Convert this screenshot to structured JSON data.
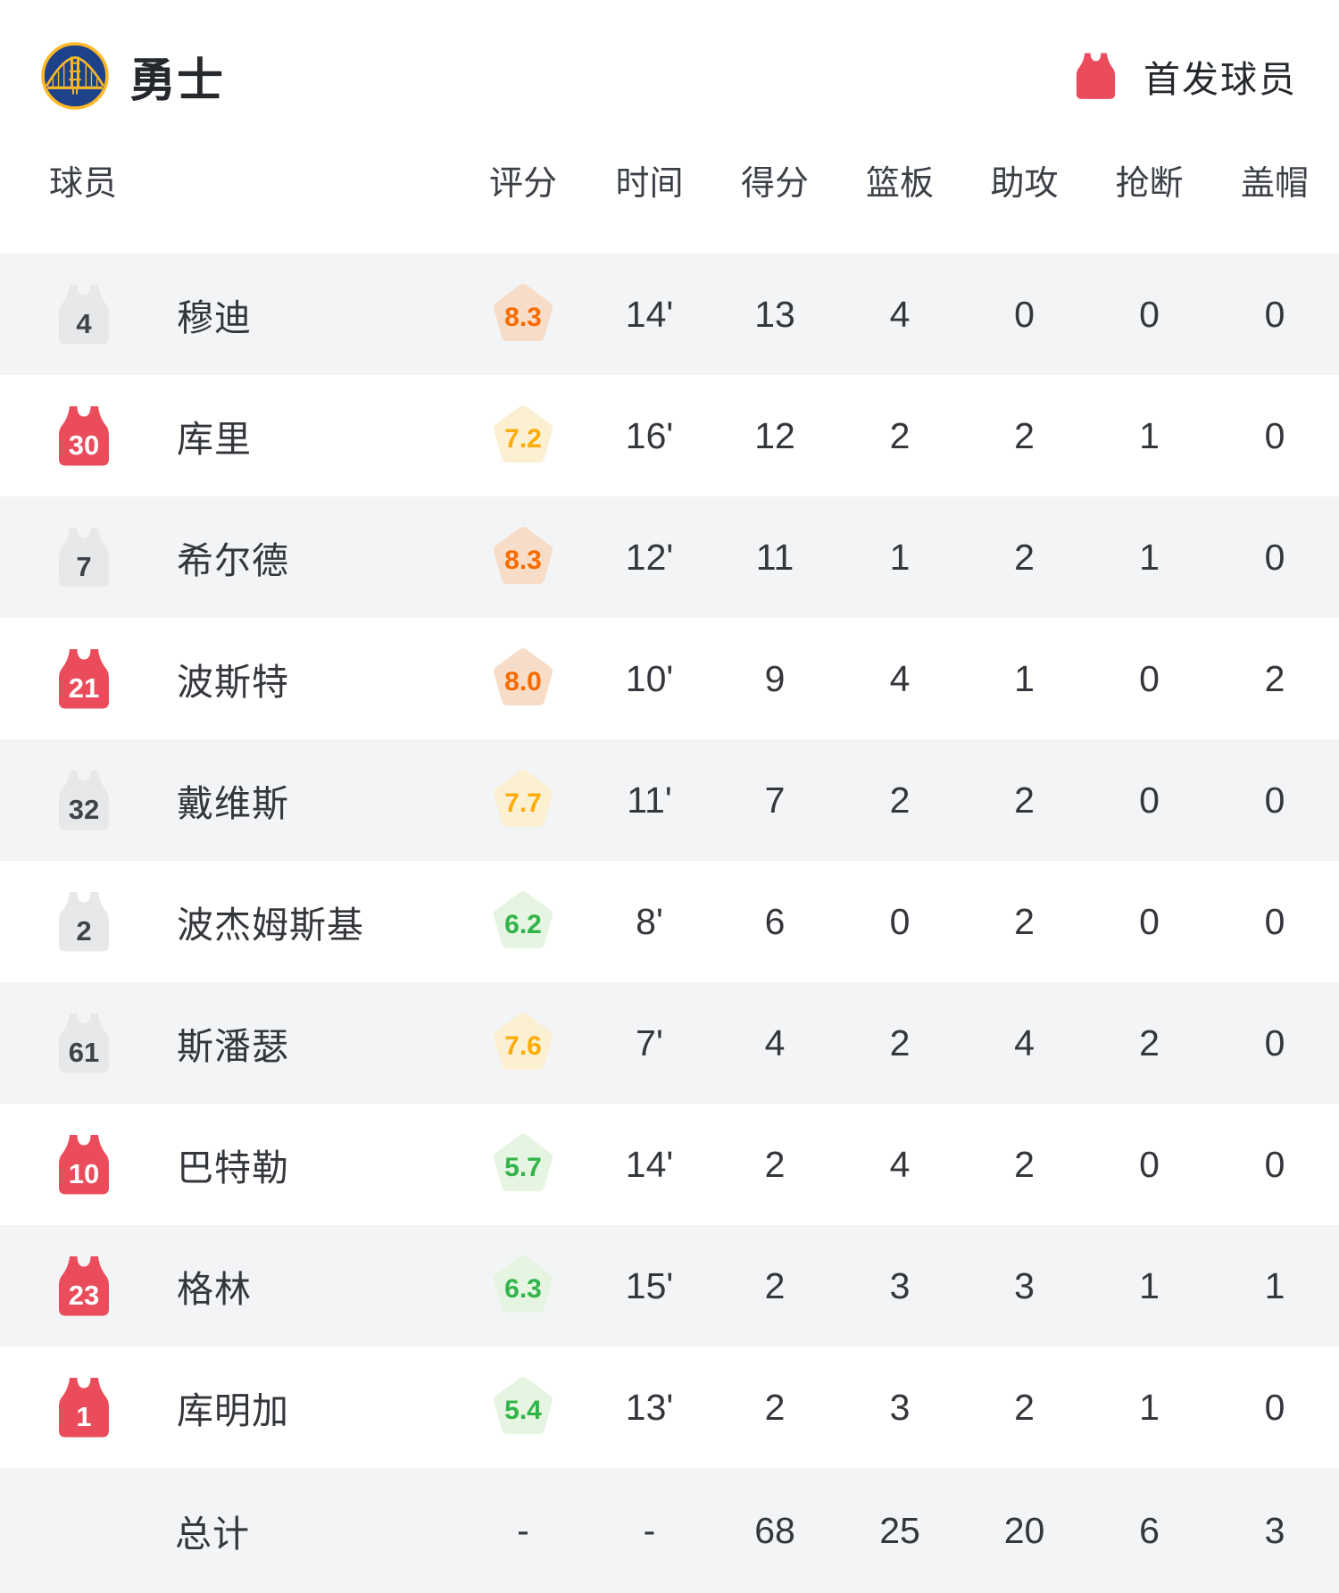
{
  "header": {
    "team_name": "勇士",
    "legend_label": "首发球员"
  },
  "table": {
    "columns": [
      "球员",
      "评分",
      "时间",
      "得分",
      "篮板",
      "助攻",
      "抢断",
      "盖帽"
    ],
    "rows": [
      {
        "number": "4",
        "starter": false,
        "name": "穆迪",
        "rating": "8.3",
        "tier": "orange",
        "time": "14'",
        "points": "13",
        "rebounds": "4",
        "assists": "0",
        "steals": "0",
        "blocks": "0"
      },
      {
        "number": "30",
        "starter": true,
        "name": "库里",
        "rating": "7.2",
        "tier": "amber",
        "time": "16'",
        "points": "12",
        "rebounds": "2",
        "assists": "2",
        "steals": "1",
        "blocks": "0"
      },
      {
        "number": "7",
        "starter": false,
        "name": "希尔德",
        "rating": "8.3",
        "tier": "orange",
        "time": "12'",
        "points": "11",
        "rebounds": "1",
        "assists": "2",
        "steals": "1",
        "blocks": "0"
      },
      {
        "number": "21",
        "starter": true,
        "name": "波斯特",
        "rating": "8.0",
        "tier": "orange",
        "time": "10'",
        "points": "9",
        "rebounds": "4",
        "assists": "1",
        "steals": "0",
        "blocks": "2"
      },
      {
        "number": "32",
        "starter": false,
        "name": "戴维斯",
        "rating": "7.7",
        "tier": "amber",
        "time": "11'",
        "points": "7",
        "rebounds": "2",
        "assists": "2",
        "steals": "0",
        "blocks": "0"
      },
      {
        "number": "2",
        "starter": false,
        "name": "波杰姆斯基",
        "rating": "6.2",
        "tier": "green",
        "time": "8'",
        "points": "6",
        "rebounds": "0",
        "assists": "2",
        "steals": "0",
        "blocks": "0"
      },
      {
        "number": "61",
        "starter": false,
        "name": "斯潘瑟",
        "rating": "7.6",
        "tier": "amber",
        "time": "7'",
        "points": "4",
        "rebounds": "2",
        "assists": "4",
        "steals": "2",
        "blocks": "0"
      },
      {
        "number": "10",
        "starter": true,
        "name": "巴特勒",
        "rating": "5.7",
        "tier": "green",
        "time": "14'",
        "points": "2",
        "rebounds": "4",
        "assists": "2",
        "steals": "0",
        "blocks": "0"
      },
      {
        "number": "23",
        "starter": true,
        "name": "格林",
        "rating": "6.3",
        "tier": "green",
        "time": "15'",
        "points": "2",
        "rebounds": "3",
        "assists": "3",
        "steals": "1",
        "blocks": "1"
      },
      {
        "number": "1",
        "starter": true,
        "name": "库明加",
        "rating": "5.4",
        "tier": "green",
        "time": "13'",
        "points": "2",
        "rebounds": "3",
        "assists": "2",
        "steals": "1",
        "blocks": "0"
      }
    ],
    "total": {
      "label": "总计",
      "rating": "-",
      "time": "-",
      "points": "68",
      "rebounds": "25",
      "assists": "20",
      "steals": "6",
      "blocks": "3"
    }
  },
  "colors": {
    "starter_jersey_red": "#ea4c5c",
    "bench_jersey_gray": "#e7e8ea",
    "row_shade": "#f3f4f6",
    "rating_orange_text": "#f76b00",
    "rating_orange_bg": "#f7dcc7",
    "rating_amber_text": "#ffab07",
    "rating_amber_bg": "#fbf0d2",
    "rating_green_text": "#33b44a",
    "rating_green_bg": "#e6f4e2",
    "logo_blue": "#1d428a",
    "logo_gold": "#fdb927"
  }
}
